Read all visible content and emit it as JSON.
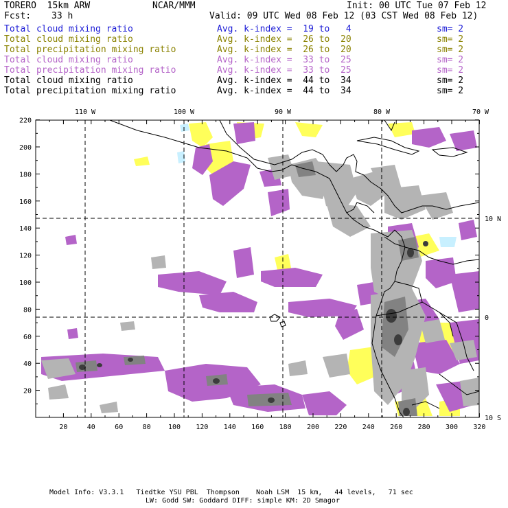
{
  "header": {
    "model": "TORERO  15km ARW",
    "center": "NCAR/MMM",
    "init": "Init: 00 UTC Tue 07 Feb 12",
    "fcst_label": "Fcst:",
    "fcst_value": "33 h",
    "valid": "Valid: 09 UTC Wed 08 Feb 12 (03 CST Wed 08 Feb 12)"
  },
  "fields": [
    {
      "name": "Total cloud mixing ratio",
      "kindex": "Avg. k-index =  19 to   4",
      "sm": "sm= 2",
      "color": "#1c1cd6"
    },
    {
      "name": "Total cloud mixing ratio",
      "kindex": "Avg. k-index =  26 to  20",
      "sm": "sm= 2",
      "color": "#8a8200"
    },
    {
      "name": "Total precipitation mixing ratio",
      "kindex": "Avg. k-index =  26 to  20",
      "sm": "sm= 2",
      "color": "#8a8200"
    },
    {
      "name": "Total cloud mixing ratio",
      "kindex": "Avg. k-index =  33 to  25",
      "sm": "sm= 2",
      "color": "#b464c8"
    },
    {
      "name": "Total precipitation mixing ratio",
      "kindex": "Avg. k-index =  33 to  25",
      "sm": "sm= 2",
      "color": "#b464c8"
    },
    {
      "name": "Total cloud mixing ratio",
      "kindex": "Avg. k-index =  44 to  34",
      "sm": "sm= 2",
      "color": "#000000"
    },
    {
      "name": "Total precipitation mixing ratio",
      "kindex": "Avg. k-index =  44 to  34",
      "sm": "sm= 2",
      "color": "#000000"
    }
  ],
  "map": {
    "y_ticks": [
      "220",
      "200",
      "180",
      "160",
      "140",
      "120",
      "100",
      "80",
      "60",
      "40",
      "20"
    ],
    "x_ticks": [
      "20",
      "40",
      "60",
      "80",
      "100",
      "120",
      "140",
      "160",
      "180",
      "200",
      "220",
      "240",
      "260",
      "280",
      "300",
      "320"
    ],
    "lon_labels": [
      "110 W",
      "100 W",
      "90 W",
      "80 W",
      "70 W"
    ],
    "lat_labels": [
      "10 N",
      "0",
      "10 S"
    ],
    "colors": {
      "purple": "#b464c8",
      "yellow": "#ffff5a",
      "light_blue": "#c8f0ff",
      "gray_light": "#b4b4b4",
      "gray_mid": "#828282",
      "gray_dark": "#3c3c3c",
      "coast": "#000000"
    }
  },
  "footer": {
    "line1": "Model Info: V3.3.1   Tiedtke YSU PBL  Thompson    Noah LSM  15 km,   44 levels,   71 sec",
    "line2": "LW: Godd SW: Goddard DIFF: simple KM: 2D Smagor"
  }
}
